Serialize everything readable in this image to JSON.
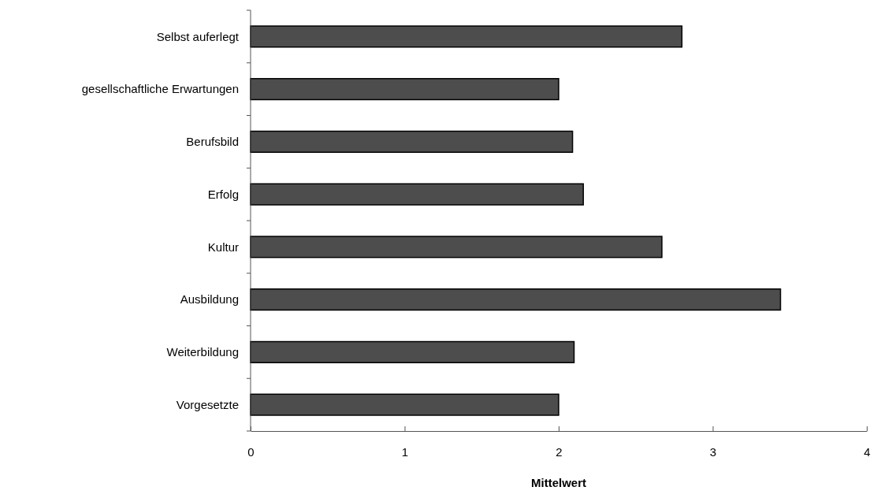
{
  "chart_data": {
    "type": "bar",
    "orientation": "horizontal",
    "xlabel": "Mittelwert",
    "categories": [
      "Selbst auferlegt",
      "gesellschaftliche Erwartungen",
      "Berufsbild",
      "Erfolg",
      "Kultur",
      "Ausbildung",
      "Weiterbildung",
      "Vorgesetzte"
    ],
    "values": [
      2.8,
      2.0,
      2.09,
      2.16,
      2.67,
      3.44,
      2.1,
      2.0
    ],
    "color": "#4d4d4d",
    "xlim": [
      0,
      4
    ],
    "xticks": [
      0,
      1,
      2,
      3,
      4
    ],
    "grid": false
  }
}
